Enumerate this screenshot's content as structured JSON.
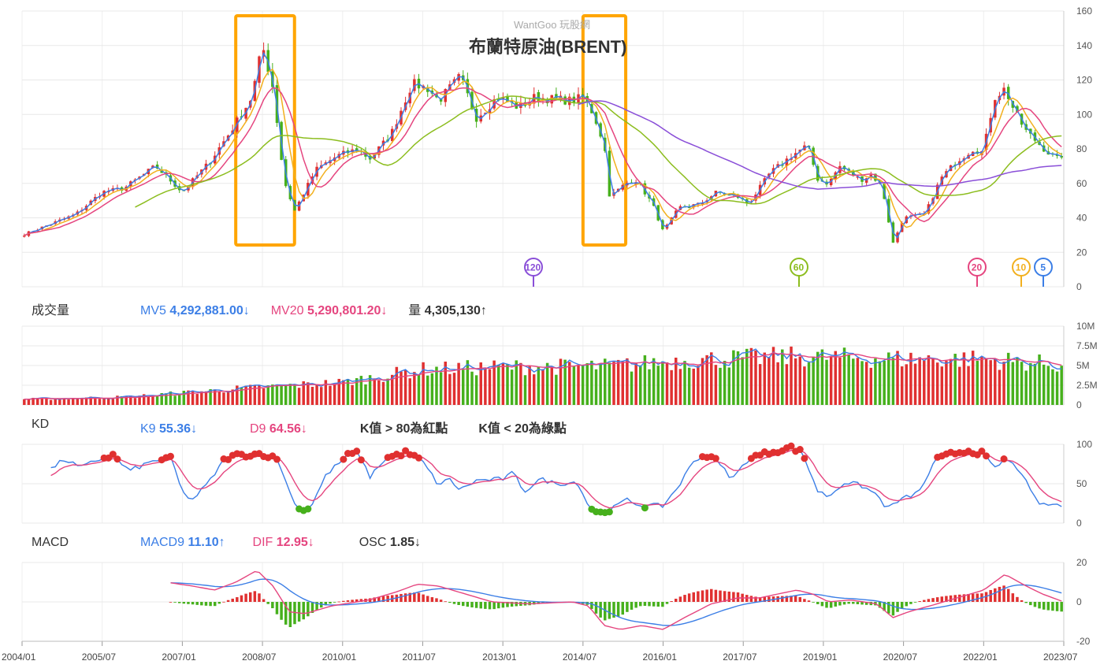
{
  "watermark": "WantGoo 玩股網",
  "title": "布蘭特原油(BRENT)",
  "colors": {
    "up": "#e03030",
    "down": "#46b01c",
    "ma5": "#3b7ee6",
    "ma10": "#f2b01e",
    "ma20": "#e5457f",
    "ma60": "#8cbd1e",
    "ma120": "#8a4fd8",
    "highlight": "#ffa500",
    "grid": "#e8e8e8",
    "axis": "#666666"
  },
  "ma_markers": [
    {
      "label": "120",
      "color": "#8a4fd8"
    },
    {
      "label": "60",
      "color": "#8cbd1e"
    },
    {
      "label": "20",
      "color": "#e5457f"
    },
    {
      "label": "10",
      "color": "#f2b01e"
    },
    {
      "label": "5",
      "color": "#3b7ee6"
    }
  ],
  "volume_panel": {
    "title": "成交量",
    "mv5_label": "MV5",
    "mv5_value": "4,292,881.00↓",
    "mv20_label": "MV20",
    "mv20_value": "5,290,801.20↓",
    "vol_label": "量",
    "vol_value": "4,305,130↑"
  },
  "kd_panel": {
    "title": "KD",
    "k_label": "K9",
    "k_value": "55.36↓",
    "d_label": "D9",
    "d_value": "64.56↓",
    "note_red": "K值 > 80為紅點",
    "note_green": "K值 < 20為綠點"
  },
  "macd_panel": {
    "title": "MACD",
    "macd_label": "MACD9",
    "macd_value": "11.10↑",
    "dif_label": "DIF",
    "dif_value": "12.95↓",
    "osc_label": "OSC",
    "osc_value": "1.85↓"
  },
  "x_axis_labels": [
    "2004/01",
    "2005/07",
    "2007/01",
    "2008/07",
    "2010/01",
    "2011/07",
    "2013/01",
    "2014/07",
    "2016/01",
    "2017/07",
    "2019/01",
    "2020/07",
    "2022/01",
    "2023/07"
  ],
  "chart_data": [
    {
      "type": "candlestick",
      "title": "布蘭特原油(BRENT)",
      "y_ticks": [
        0,
        20,
        40,
        60,
        80,
        100,
        120,
        140,
        160
      ],
      "ylim": [
        0,
        160
      ],
      "x_range": [
        2004.0,
        2023.5
      ],
      "price_anchors": [
        [
          2004.0,
          30
        ],
        [
          2004.5,
          36
        ],
        [
          2005.0,
          42
        ],
        [
          2005.5,
          55
        ],
        [
          2005.9,
          57
        ],
        [
          2006.5,
          70
        ],
        [
          2007.0,
          55
        ],
        [
          2007.5,
          72
        ],
        [
          2007.9,
          90
        ],
        [
          2008.3,
          110
        ],
        [
          2008.5,
          140
        ],
        [
          2008.7,
          115
        ],
        [
          2008.9,
          62
        ],
        [
          2009.1,
          44
        ],
        [
          2009.5,
          68
        ],
        [
          2009.9,
          76
        ],
        [
          2010.3,
          80
        ],
        [
          2010.5,
          74
        ],
        [
          2010.9,
          88
        ],
        [
          2011.3,
          118
        ],
        [
          2011.6,
          115
        ],
        [
          2011.8,
          108
        ],
        [
          2012.2,
          122
        ],
        [
          2012.5,
          98
        ],
        [
          2012.9,
          110
        ],
        [
          2013.3,
          104
        ],
        [
          2013.6,
          110
        ],
        [
          2013.9,
          109
        ],
        [
          2014.3,
          108
        ],
        [
          2014.5,
          110
        ],
        [
          2014.7,
          100
        ],
        [
          2014.9,
          82
        ],
        [
          2015.0,
          52
        ],
        [
          2015.3,
          60
        ],
        [
          2015.5,
          62
        ],
        [
          2015.8,
          48
        ],
        [
          2016.0,
          32
        ],
        [
          2016.3,
          46
        ],
        [
          2016.7,
          48
        ],
        [
          2017.0,
          55
        ],
        [
          2017.4,
          52
        ],
        [
          2017.6,
          48
        ],
        [
          2018.0,
          66
        ],
        [
          2018.4,
          76
        ],
        [
          2018.7,
          82
        ],
        [
          2018.9,
          62
        ],
        [
          2019.1,
          60
        ],
        [
          2019.3,
          70
        ],
        [
          2019.7,
          62
        ],
        [
          2019.9,
          65
        ],
        [
          2020.1,
          58
        ],
        [
          2020.3,
          25
        ],
        [
          2020.5,
          40
        ],
        [
          2020.9,
          42
        ],
        [
          2021.2,
          63
        ],
        [
          2021.5,
          73
        ],
        [
          2021.8,
          80
        ],
        [
          2021.99,
          78
        ],
        [
          2022.2,
          110
        ],
        [
          2022.4,
          115
        ],
        [
          2022.6,
          100
        ],
        [
          2022.8,
          90
        ],
        [
          2023.0,
          84
        ],
        [
          2023.2,
          78
        ],
        [
          2023.4,
          74
        ],
        [
          2023.5,
          78
        ]
      ],
      "moving_averages": [
        "MA5",
        "MA10",
        "MA20",
        "MA60",
        "MA120"
      ],
      "highlight_boxes": [
        [
          2008.0,
          2009.1
        ],
        [
          2014.5,
          2015.3
        ]
      ]
    },
    {
      "type": "bar",
      "title": "成交量",
      "y_ticks": [
        "0",
        "2.5M",
        "5M",
        "7.5M",
        "10M"
      ],
      "ylim": [
        0,
        10000000
      ],
      "volume_anchors": [
        [
          2004.0,
          0.7
        ],
        [
          2006.0,
          1.0
        ],
        [
          2008.0,
          2.0
        ],
        [
          2010.0,
          2.8
        ],
        [
          2011.5,
          4.4
        ],
        [
          2013.0,
          4.7
        ],
        [
          2015.0,
          4.8
        ],
        [
          2016.5,
          5.6
        ],
        [
          2018.5,
          6.0
        ],
        [
          2020.5,
          5.7
        ],
        [
          2022.0,
          5.7
        ],
        [
          2023.4,
          5.0
        ]
      ],
      "series": [
        {
          "name": "MV5"
        },
        {
          "name": "MV20"
        }
      ]
    },
    {
      "type": "line",
      "title": "KD",
      "y_ticks": [
        0,
        50,
        100
      ],
      "ylim": [
        0,
        100
      ],
      "k_anchors": [
        [
          2004.5,
          67
        ],
        [
          2004.8,
          81
        ],
        [
          2005.1,
          70
        ],
        [
          2005.4,
          80
        ],
        [
          2005.7,
          86
        ],
        [
          2006.0,
          66
        ],
        [
          2006.5,
          80
        ],
        [
          2006.8,
          82
        ],
        [
          2007.0,
          38
        ],
        [
          2007.2,
          30
        ],
        [
          2007.5,
          52
        ],
        [
          2007.8,
          82
        ],
        [
          2008.0,
          86
        ],
        [
          2008.5,
          88
        ],
        [
          2008.8,
          80
        ],
        [
          2009.0,
          40
        ],
        [
          2009.2,
          16
        ],
        [
          2009.4,
          20
        ],
        [
          2009.7,
          62
        ],
        [
          2010.1,
          86
        ],
        [
          2010.3,
          90
        ],
        [
          2010.5,
          58
        ],
        [
          2010.8,
          82
        ],
        [
          2011.2,
          90
        ],
        [
          2011.5,
          78
        ],
        [
          2011.8,
          48
        ],
        [
          2012.0,
          56
        ],
        [
          2012.2,
          42
        ],
        [
          2012.5,
          54
        ],
        [
          2013.0,
          56
        ],
        [
          2013.2,
          64
        ],
        [
          2013.4,
          40
        ],
        [
          2013.7,
          56
        ],
        [
          2014.0,
          50
        ],
        [
          2014.4,
          52
        ],
        [
          2014.6,
          22
        ],
        [
          2014.8,
          12
        ],
        [
          2015.1,
          20
        ],
        [
          2015.3,
          30
        ],
        [
          2015.6,
          22
        ],
        [
          2016.0,
          22
        ],
        [
          2016.3,
          48
        ],
        [
          2016.6,
          82
        ],
        [
          2016.9,
          86
        ],
        [
          2017.3,
          56
        ],
        [
          2017.6,
          82
        ],
        [
          2018.0,
          90
        ],
        [
          2018.4,
          96
        ],
        [
          2018.6,
          90
        ],
        [
          2018.9,
          40
        ],
        [
          2019.1,
          34
        ],
        [
          2019.4,
          52
        ],
        [
          2019.7,
          48
        ],
        [
          2020.0,
          36
        ],
        [
          2020.2,
          18
        ],
        [
          2020.4,
          28
        ],
        [
          2020.8,
          40
        ],
        [
          2021.1,
          80
        ],
        [
          2021.4,
          88
        ],
        [
          2021.7,
          92
        ],
        [
          2022.0,
          88
        ],
        [
          2022.2,
          68
        ],
        [
          2022.4,
          82
        ],
        [
          2022.7,
          66
        ],
        [
          2022.9,
          36
        ],
        [
          2023.1,
          22
        ],
        [
          2023.3,
          24
        ],
        [
          2023.5,
          22
        ]
      ],
      "series": [
        {
          "name": "K9"
        },
        {
          "name": "D9"
        }
      ]
    },
    {
      "type": "bar",
      "title": "MACD",
      "y_ticks": [
        -20,
        0,
        20
      ],
      "ylim": [
        -20,
        20
      ],
      "dif_anchors": [
        [
          2006.7,
          10
        ],
        [
          2007.2,
          8
        ],
        [
          2007.6,
          6
        ],
        [
          2008.0,
          10
        ],
        [
          2008.4,
          16
        ],
        [
          2008.7,
          8
        ],
        [
          2009.0,
          -5
        ],
        [
          2009.3,
          -6
        ],
        [
          2009.8,
          -2
        ],
        [
          2010.5,
          1
        ],
        [
          2011.0,
          5
        ],
        [
          2011.4,
          9
        ],
        [
          2011.8,
          8
        ],
        [
          2012.3,
          4
        ],
        [
          2012.8,
          0
        ],
        [
          2013.5,
          -1
        ],
        [
          2014.3,
          0
        ],
        [
          2014.6,
          -2
        ],
        [
          2014.9,
          -12
        ],
        [
          2015.2,
          -14
        ],
        [
          2015.6,
          -12
        ],
        [
          2016.0,
          -14
        ],
        [
          2016.4,
          -8
        ],
        [
          2016.9,
          -1
        ],
        [
          2017.4,
          2
        ],
        [
          2017.8,
          2
        ],
        [
          2018.5,
          6
        ],
        [
          2018.8,
          4
        ],
        [
          2019.1,
          0
        ],
        [
          2019.5,
          1
        ],
        [
          2020.0,
          -1
        ],
        [
          2020.3,
          -8
        ],
        [
          2020.6,
          -5
        ],
        [
          2021.0,
          -2
        ],
        [
          2021.5,
          2
        ],
        [
          2022.0,
          6
        ],
        [
          2022.4,
          14
        ],
        [
          2022.8,
          8
        ],
        [
          2023.1,
          4
        ],
        [
          2023.5,
          0
        ]
      ],
      "series": [
        {
          "name": "MACD9"
        },
        {
          "name": "DIF"
        },
        {
          "name": "OSC"
        }
      ]
    }
  ]
}
